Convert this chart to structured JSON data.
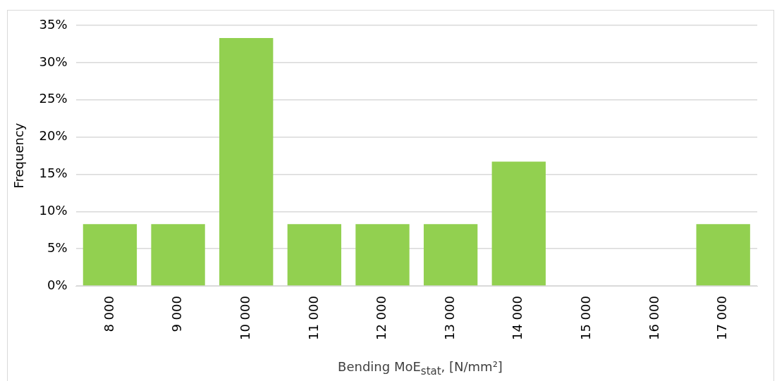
{
  "chart_data": {
    "type": "bar",
    "xlabel": "Bending MoE$_{stat}$, [N/mm²]",
    "ylabel": "Frequency",
    "categories": [
      "8 000",
      "9 000",
      "10 000",
      "11 000",
      "12 000",
      "13 000",
      "14 000",
      "15 000",
      "16 000",
      "17 000"
    ],
    "values": [
      8.3,
      8.3,
      33.3,
      8.3,
      8.3,
      8.3,
      16.7,
      0,
      0,
      8.3
    ],
    "color": "#92d050",
    "ylim": [
      0,
      35
    ],
    "yticks": [
      {
        "value": 0,
        "label": "0%"
      },
      {
        "value": 5,
        "label": "5%"
      },
      {
        "value": 10,
        "label": "10%"
      },
      {
        "value": 15,
        "label": "15%"
      },
      {
        "value": 20,
        "label": "20%"
      },
      {
        "value": 25,
        "label": "25%"
      },
      {
        "value": 30,
        "label": "30%"
      },
      {
        "value": 35,
        "label": "35%"
      }
    ],
    "grid": "y",
    "legend": false
  }
}
